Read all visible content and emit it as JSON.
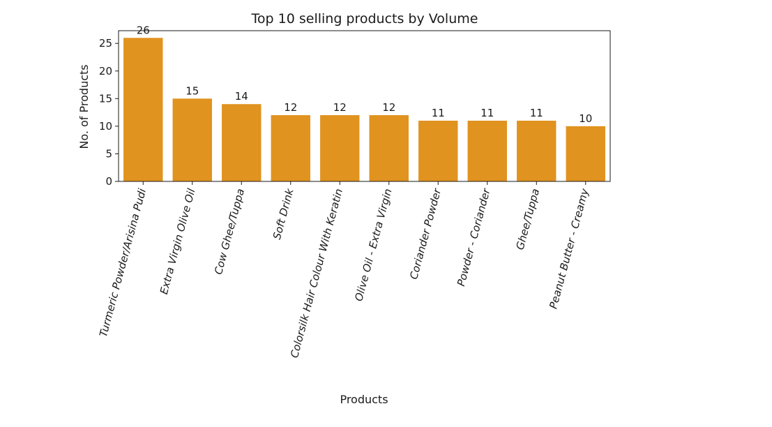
{
  "chart_data": {
    "type": "bar",
    "title": "Top 10 selling products by Volume",
    "xlabel": "Products",
    "ylabel": "No. of Products",
    "categories": [
      "Turmeric Powder/Arisina Pudi",
      "Extra Virgin Olive Oil",
      "Cow Ghee/Tuppa",
      "Soft Drink",
      "Colorsilk Hair Colour With Keratin",
      "Olive Oil - Extra Virgin",
      "Coriander Powder",
      "Powder - Coriander",
      "Ghee/Tuppa",
      "Peanut Butter - Creamy"
    ],
    "values": [
      26,
      15,
      14,
      12,
      12,
      12,
      11,
      11,
      11,
      10
    ],
    "data_labels": [
      "26",
      "15",
      "14",
      "12",
      "12",
      "12",
      "11",
      "11",
      "11",
      "10"
    ],
    "yticks": [
      0,
      5,
      10,
      15,
      20,
      25
    ],
    "ylim": [
      0,
      27.3
    ],
    "bar_color": "#e0931f",
    "grid": false,
    "legend": "none"
  }
}
